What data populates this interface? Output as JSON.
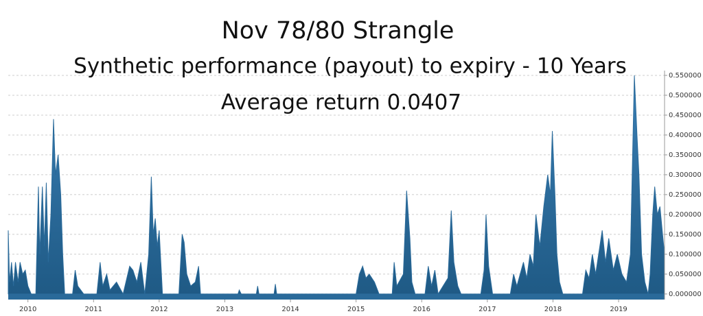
{
  "chart_data": {
    "type": "area",
    "title": "Nov 78/80 Strangle",
    "subtitle": "Synthetic performance (payout) to expiry - 10 Years",
    "annotation": "Average return 0.0407",
    "color": "#2a6a9a",
    "grid": true,
    "xlim": [
      2009.7,
      2019.7
    ],
    "ylim": [
      -0.014,
      0.562
    ],
    "xticks": [
      2010,
      2011,
      2012,
      2013,
      2014,
      2015,
      2016,
      2017,
      2018,
      2019
    ],
    "yticks": [
      {
        "value": 0,
        "label": "0.000000"
      },
      {
        "value": 0.05,
        "label": "0.050000"
      },
      {
        "value": 0.1,
        "label": "0.100000"
      },
      {
        "value": 0.15,
        "label": "0.150000"
      },
      {
        "value": 0.2,
        "label": "0.200000"
      },
      {
        "value": 0.25,
        "label": "0.250000"
      },
      {
        "value": 0.3,
        "label": "0.300000"
      },
      {
        "value": 0.35,
        "label": "0.350000"
      },
      {
        "value": 0.4,
        "label": "0.400000"
      },
      {
        "value": 0.45,
        "label": "0.450000"
      },
      {
        "value": 0.5,
        "label": "0.500000"
      },
      {
        "value": 0.55,
        "label": "0.550000"
      }
    ],
    "x": [
      2009.7,
      2009.72,
      2009.75,
      2009.78,
      2009.81,
      2009.85,
      2009.88,
      2009.92,
      2009.96,
      2010.0,
      2010.05,
      2010.12,
      2010.16,
      2010.18,
      2010.22,
      2010.25,
      2010.28,
      2010.31,
      2010.35,
      2010.39,
      2010.42,
      2010.46,
      2010.5,
      2010.53,
      2010.56,
      2010.68,
      2010.72,
      2010.76,
      2010.85,
      2011.05,
      2011.1,
      2011.14,
      2011.2,
      2011.25,
      2011.35,
      2011.45,
      2011.55,
      2011.6,
      2011.66,
      2011.72,
      2011.78,
      2011.84,
      2011.88,
      2011.91,
      2011.94,
      2011.97,
      2012.0,
      2012.05,
      2012.3,
      2012.35,
      2012.38,
      2012.42,
      2012.48,
      2012.55,
      2012.6,
      2012.63,
      2013.2,
      2013.22,
      2013.25,
      2013.48,
      2013.5,
      2013.52,
      2013.75,
      2013.77,
      2013.79,
      2015.0,
      2015.05,
      2015.1,
      2015.15,
      2015.2,
      2015.28,
      2015.35,
      2015.55,
      2015.58,
      2015.62,
      2015.72,
      2015.77,
      2015.82,
      2015.85,
      2015.9,
      2016.05,
      2016.1,
      2016.15,
      2016.2,
      2016.25,
      2016.4,
      2016.45,
      2016.49,
      2016.55,
      2016.6,
      2016.9,
      2016.95,
      2016.98,
      2017.02,
      2017.08,
      2017.35,
      2017.4,
      2017.45,
      2017.55,
      2017.6,
      2017.65,
      2017.7,
      2017.74,
      2017.8,
      2017.86,
      2017.92,
      2017.96,
      2017.99,
      2018.03,
      2018.06,
      2018.1,
      2018.15,
      2018.45,
      2018.5,
      2018.55,
      2018.6,
      2018.65,
      2018.75,
      2018.8,
      2018.85,
      2018.92,
      2018.98,
      2019.05,
      2019.12,
      2019.18,
      2019.24,
      2019.28,
      2019.31,
      2019.35,
      2019.4,
      2019.45,
      2019.48,
      2019.52,
      2019.55,
      2019.59,
      2019.63,
      2019.67,
      2019.7
    ],
    "values": [
      0.16,
      0.03,
      0.08,
      0.02,
      0.08,
      0.03,
      0.08,
      0.05,
      0.06,
      0.02,
      0,
      0,
      0.27,
      0.1,
      0.27,
      0.12,
      0.28,
      0.08,
      0.2,
      0.44,
      0.3,
      0.35,
      0.25,
      0.1,
      0,
      0,
      0.06,
      0.02,
      0,
      0,
      0.08,
      0.02,
      0.05,
      0.01,
      0.03,
      0,
      0.07,
      0.06,
      0.03,
      0.08,
      0,
      0.1,
      0.295,
      0.15,
      0.19,
      0.12,
      0.16,
      0,
      0,
      0.15,
      0.13,
      0.05,
      0.02,
      0.03,
      0.07,
      0,
      0,
      0.01,
      0,
      0,
      0.02,
      0,
      0,
      0.025,
      0,
      0,
      0.05,
      0.07,
      0.04,
      0.05,
      0.03,
      0,
      0,
      0.08,
      0.02,
      0.05,
      0.26,
      0.14,
      0.03,
      0,
      0,
      0.07,
      0.02,
      0.06,
      0,
      0.04,
      0.21,
      0.08,
      0.02,
      0,
      0,
      0.06,
      0.2,
      0.07,
      0,
      0,
      0.05,
      0.02,
      0.08,
      0.04,
      0.1,
      0.07,
      0.2,
      0.12,
      0.22,
      0.3,
      0.25,
      0.41,
      0.25,
      0.1,
      0.03,
      0,
      0,
      0.06,
      0.04,
      0.1,
      0.05,
      0.16,
      0.08,
      0.14,
      0.06,
      0.1,
      0.05,
      0.03,
      0.1,
      0.55,
      0.4,
      0.3,
      0.1,
      0.03,
      0,
      0.05,
      0.2,
      0.27,
      0.2,
      0.22,
      0.15,
      0.1
    ]
  }
}
